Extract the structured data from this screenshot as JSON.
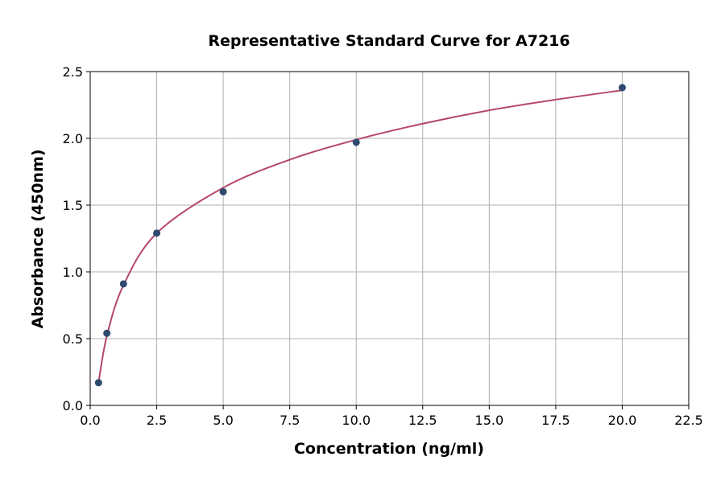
{
  "chart_data": {
    "type": "scatter",
    "title": "Representative Standard Curve for A7216",
    "xlabel": "Concentration (ng/ml)",
    "ylabel": "Absorbance (450nm)",
    "xlim": [
      0,
      22.5
    ],
    "ylim": [
      0,
      2.5
    ],
    "grid": true,
    "xticks": [
      0,
      2.5,
      5,
      7.5,
      10,
      12.5,
      15,
      17.5,
      20,
      22.5
    ],
    "xtick_labels": [
      "0.0",
      "2.5",
      "5.0",
      "7.5",
      "10.0",
      "12.5",
      "15.0",
      "17.5",
      "20.0",
      "22.5"
    ],
    "yticks": [
      0,
      0.5,
      1,
      1.5,
      2,
      2.5
    ],
    "ytick_labels": [
      "0.0",
      "0.5",
      "1.0",
      "1.5",
      "2.0",
      "2.5"
    ],
    "points": {
      "x": [
        0.3125,
        0.625,
        1.25,
        2.5,
        5,
        10,
        20
      ],
      "y": [
        0.17,
        0.54,
        0.91,
        1.29,
        1.6,
        1.97,
        2.38
      ]
    },
    "fit_curve": {
      "x": [
        0.3125,
        0.625,
        1.25,
        2.5,
        5,
        7.5,
        10,
        12.5,
        15,
        17.5,
        20
      ],
      "y": [
        0.17,
        0.52,
        0.9,
        1.29,
        1.63,
        1.84,
        1.99,
        2.11,
        2.21,
        2.29,
        2.36
      ]
    },
    "colors": {
      "point": "#2e4a6e",
      "curve": "#b5476b",
      "grid": "#b0b0b0"
    }
  }
}
